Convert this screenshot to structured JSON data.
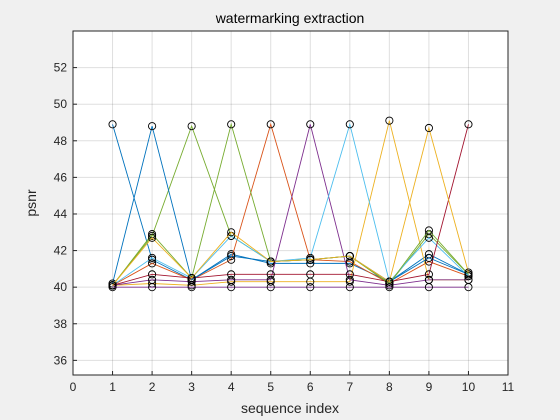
{
  "chart_data": {
    "type": "line",
    "title": "watermarking extraction",
    "xlabel": "sequence index",
    "ylabel": "psnr",
    "xlim": [
      0,
      11
    ],
    "ylim": [
      35.2,
      54
    ],
    "xticks": [
      0,
      1,
      2,
      3,
      4,
      5,
      6,
      7,
      8,
      9,
      10,
      11
    ],
    "yticks": [
      36,
      38,
      40,
      42,
      44,
      46,
      48,
      50,
      52
    ],
    "grid": true,
    "legend": "none",
    "marker": "circle",
    "x": [
      1,
      2,
      3,
      4,
      5,
      6,
      7,
      8,
      9,
      10
    ],
    "series": [
      {
        "color": "#0072BD",
        "values": [
          48.9,
          41.5,
          40.4,
          41.8,
          41.3,
          41.3,
          41.3,
          40.3,
          41.8,
          40.7
        ]
      },
      {
        "color": "#D95319",
        "values": [
          40.1,
          41.3,
          40.4,
          41.5,
          48.9,
          41.5,
          41.4,
          40.2,
          41.4,
          40.6
        ]
      },
      {
        "color": "#EDB120",
        "values": [
          40.1,
          40.2,
          40.1,
          40.3,
          40.3,
          40.3,
          40.3,
          49.1,
          40.4,
          40.4
        ]
      },
      {
        "color": "#7E2F8E",
        "values": [
          40.1,
          40.4,
          40.3,
          40.4,
          40.4,
          48.9,
          40.4,
          40.1,
          40.4,
          40.4
        ]
      },
      {
        "color": "#77AC30",
        "values": [
          40.1,
          42.8,
          48.8,
          42.8,
          41.4,
          41.5,
          41.7,
          40.2,
          42.9,
          40.7
        ]
      },
      {
        "color": "#4DBEEE",
        "values": [
          40.1,
          41.6,
          40.5,
          42.8,
          41.4,
          41.6,
          48.9,
          40.3,
          42.7,
          40.6
        ]
      },
      {
        "color": "#A2142F",
        "values": [
          40.1,
          40.7,
          40.5,
          40.7,
          40.7,
          40.7,
          40.7,
          40.3,
          40.7,
          48.9
        ]
      },
      {
        "color": "#0072BD",
        "values": [
          40.2,
          48.8,
          40.4,
          41.7,
          41.4,
          41.5,
          41.7,
          40.3,
          41.6,
          40.7
        ]
      },
      {
        "color": "#77AC30",
        "values": [
          40.1,
          42.9,
          40.5,
          48.9,
          41.4,
          41.5,
          41.7,
          40.2,
          43.1,
          40.7
        ]
      },
      {
        "color": "#EDB120",
        "values": [
          40.1,
          42.7,
          40.5,
          43.0,
          41.4,
          41.5,
          41.7,
          40.3,
          48.7,
          40.8
        ]
      },
      {
        "color": "#7E2F8E",
        "values": [
          40.0,
          40.0,
          40.0,
          40.0,
          40.0,
          40.0,
          40.0,
          40.0,
          40.0,
          40.0
        ]
      }
    ]
  }
}
